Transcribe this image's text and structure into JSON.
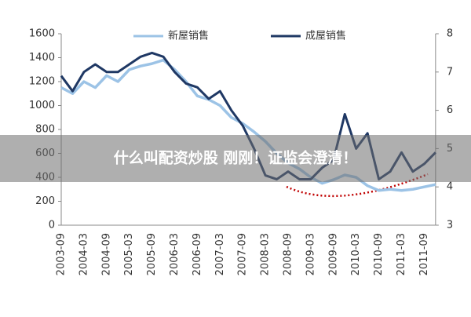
{
  "chart_data": {
    "type": "line",
    "categories": [
      "2003-09",
      null,
      "2004-03",
      null,
      "2004-09",
      null,
      "2005-03",
      null,
      "2005-09",
      null,
      "2006-03",
      null,
      "2006-09",
      null,
      "2007-03",
      null,
      "2007-09",
      null,
      "2008-03",
      null,
      "2008-09",
      null,
      "2009-03",
      null,
      "2009-09",
      null,
      "2010-03",
      null,
      "2010-09",
      null,
      "2011-03",
      null,
      "2011-09",
      null
    ],
    "series": [
      {
        "name": "新屋销售",
        "color": "#9cc3e6",
        "values": [
          1150,
          1100,
          1200,
          1150,
          1250,
          1200,
          1300,
          1330,
          1350,
          1380,
          1300,
          1200,
          1080,
          1050,
          1000,
          900,
          850,
          780,
          700,
          600,
          520,
          470,
          400,
          350,
          380,
          420,
          400,
          330,
          290,
          300,
          290,
          300,
          320,
          340
        ]
      },
      {
        "name": "成屋销售",
        "color": "#1f3864",
        "axis": "y2",
        "values": [
          6.9,
          6.5,
          7.0,
          7.2,
          7.0,
          7.0,
          7.2,
          7.4,
          7.5,
          7.4,
          7.0,
          6.7,
          6.6,
          6.3,
          6.5,
          6.0,
          5.6,
          5.0,
          4.3,
          4.2,
          4.4,
          4.2,
          4.2,
          4.5,
          4.7,
          5.9,
          5.0,
          5.4,
          4.2,
          4.4,
          4.9,
          4.4,
          4.6,
          4.9
        ]
      }
    ],
    "ylim": [
      0,
      1600
    ],
    "yticks": [
      0,
      200,
      400,
      600,
      800,
      1000,
      1200,
      1400,
      1600
    ],
    "y2lim": [
      3,
      8
    ],
    "y2ticks": [
      3,
      4,
      5,
      6,
      7,
      8
    ],
    "legend": "top"
  },
  "banner": "什么叫配资炒股 刚刚！证监会澄清！"
}
